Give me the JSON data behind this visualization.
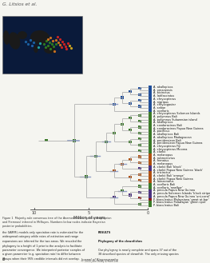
{
  "title": "G. Litsios et al.",
  "xlabel": "Million of years",
  "background": "#f5f5f0",
  "tree_color": "#aaaaaa",
  "species": [
    "akallopisos",
    "omanensis",
    "bicinctus",
    "latifasciatus",
    "chrysopterus",
    "nigripus",
    "chrysogaster",
    "sebae",
    "ocellaris",
    "chrysopterus Solomon Islands",
    "polymnus Bali",
    "polymnus Sulawesian island",
    "akallopisos",
    "sandaracinos Bali",
    "sandaracinos Papua New Guinea",
    "pacificus",
    "akallopisos Bali",
    "akallopisos Madagascan",
    "perideraieon Bali",
    "perideraieon Papua New Guinea",
    "chrysopterus Fiji",
    "chrysopterus Moorea",
    "clarkii",
    "melanopus",
    "rubrocinctus",
    "frenatus",
    "melanopus",
    "clarkii Bali 'black'",
    "clarkii Papua New Guinea 'black'",
    "tricinctus",
    "clarkii Bali 'orange'",
    "clarkii Papua New Guinea",
    "latezonatus",
    "ocellaris Bali",
    "ocellaris 'new/bar'",
    "percula Papua New Guinea",
    "percula Solomon Islands 'black stripe'",
    "percula Papua New Guinea 'uni-coral'",
    "biaculeatus Malaysiana 'great at-bar'",
    "biaculeatus Palawayan 'green spot'",
    "biaculeatus Bali"
  ],
  "prefix_list": [
    "A",
    "A",
    "A",
    "A",
    "A",
    "A",
    "A",
    "A",
    "A",
    "A",
    "A",
    "A",
    "A",
    "A",
    "A",
    "A",
    "A",
    "A",
    "A",
    "A",
    "A",
    "A",
    "A",
    "A",
    "A",
    "A",
    "A",
    "A",
    "A",
    "A",
    "A",
    "A",
    "A",
    "A",
    "A",
    "A",
    "A",
    "A",
    "P",
    "P",
    "P"
  ],
  "tip_box_colors": [
    "#1e4d9a",
    "#1e4d9a",
    "#1e4d9a",
    "#1e4d9a",
    "#1e4d9a",
    "#1e4d9a",
    "#1e4d9a",
    "#1e4d9a",
    "#1e4d9a",
    "#3a7a28",
    "#3a7a28",
    "#3a7a28",
    "#3a7a28",
    "#3a7a28",
    "#3a7a28",
    "#3a7a28",
    "#3a7a28",
    "#3a7a28",
    "#3a7a28",
    "#3a7a28",
    "#3a7a28",
    "#3a7a28",
    "#3a7a28",
    "#b05010",
    "#b05010",
    "#b05010",
    "#b05010",
    "#4a3080",
    "#4a3080",
    "#b05010",
    "#b05010",
    "#b05010",
    "#b05010",
    "#3a7a28",
    "#3a7a28",
    "#4a3080",
    "#4a3080",
    "#4a3080",
    "#8b1a1a",
    "#3a7a28",
    "#3a7a28"
  ],
  "node_box_colors": {
    "blue": "#1e4d9a",
    "green": "#3a7a28",
    "orange": "#b05010",
    "purple": "#4a3080",
    "darkred": "#8b1a1a",
    "yellow": "#c8a020",
    "red": "#cc2222"
  },
  "caption_short": "Figure 1 Majority-rule consensus tree of the Anemonefishes (genera Amphiprion and Premnas) inferred in MrBayes.",
  "body_text_lines": [
    "the GAMML models only speciation rate is estimated for the",
    "widespread category while rates of extinction and range",
    "expansions are inferred for the two areas. We rescaled the",
    "phylogeny to a height of 1 prior to the analysis to facilitate",
    "parameter convergence. We interpreted posterior samples of",
    "a given parameter (e.g. speciation rate) to differ between",
    "groups when their 95% credible intervals did not overlap.",
    "",
    "RESULTS",
    "",
    "Phylogeny of the clownfishes",
    "",
    "Our phylogeny is nearly complete and spans 37 out of the",
    "38 described species of clownfish. The only missing species"
  ]
}
